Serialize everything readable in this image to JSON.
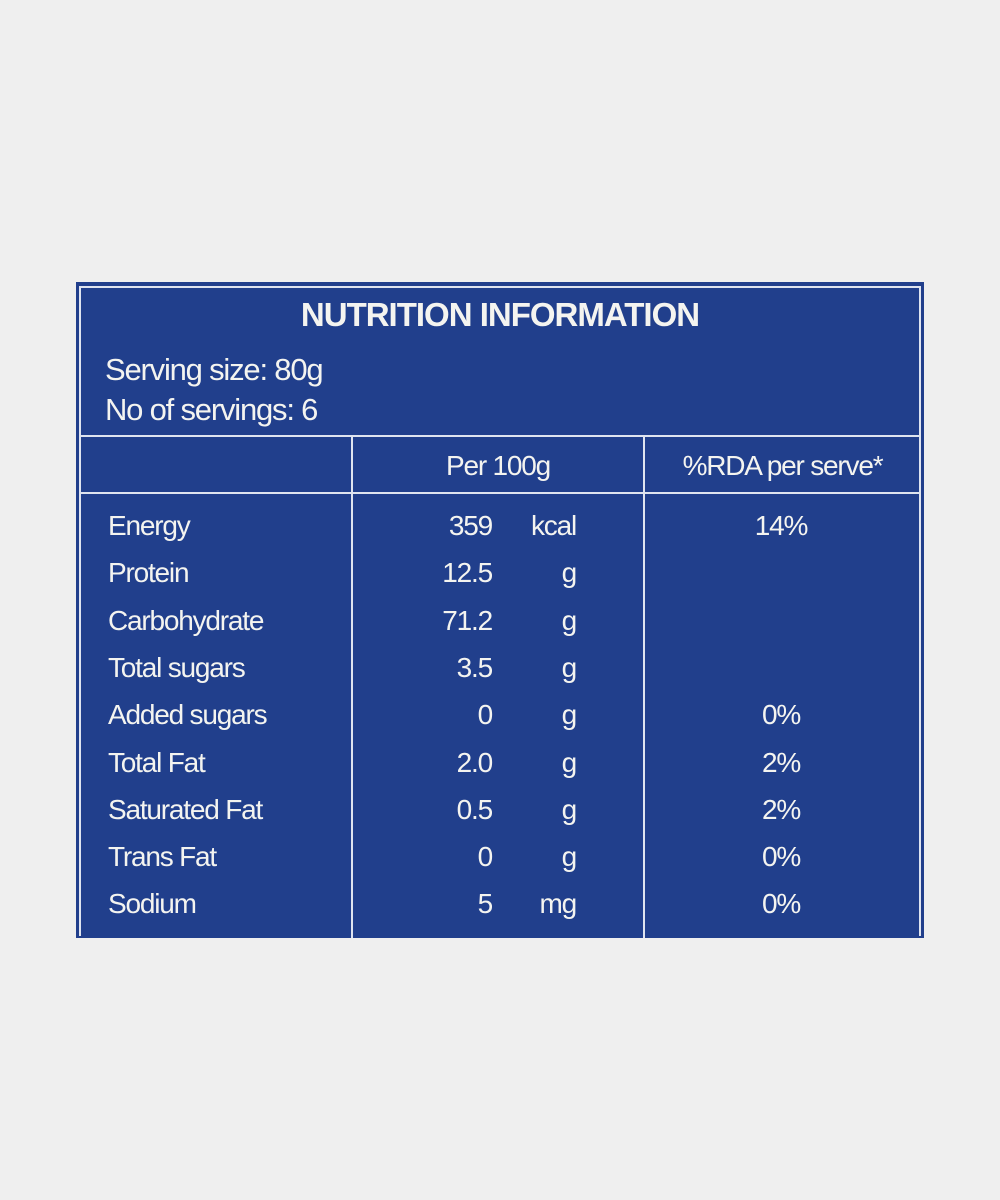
{
  "title": "NUTRITION INFORMATION",
  "serving_size": "Serving size: 80g",
  "servings": "No of servings: 6",
  "columns": {
    "label": "",
    "per100": "Per 100g",
    "rda": "%RDA per serve*"
  },
  "colors": {
    "panel": "#213f8c",
    "text": "#f4f4f0",
    "background": "#efefef"
  },
  "rows": [
    {
      "label": "Energy",
      "value": "359",
      "unit": "kcal",
      "rda": "14%"
    },
    {
      "label": "Protein",
      "value": "12.5",
      "unit": "g",
      "rda": ""
    },
    {
      "label": "Carbohydrate",
      "value": "71.2",
      "unit": "g",
      "rda": ""
    },
    {
      "label": "Total sugars",
      "value": "3.5",
      "unit": "g",
      "rda": ""
    },
    {
      "label": "Added sugars",
      "value": "0",
      "unit": "g",
      "rda": "0%"
    },
    {
      "label": "Total Fat",
      "value": "2.0",
      "unit": "g",
      "rda": "2%"
    },
    {
      "label": "Saturated Fat",
      "value": "0.5",
      "unit": "g",
      "rda": "2%"
    },
    {
      "label": "Trans Fat",
      "value": "0",
      "unit": "g",
      "rda": "0%"
    },
    {
      "label": "Sodium",
      "value": "5",
      "unit": "mg",
      "rda": "0%"
    }
  ]
}
